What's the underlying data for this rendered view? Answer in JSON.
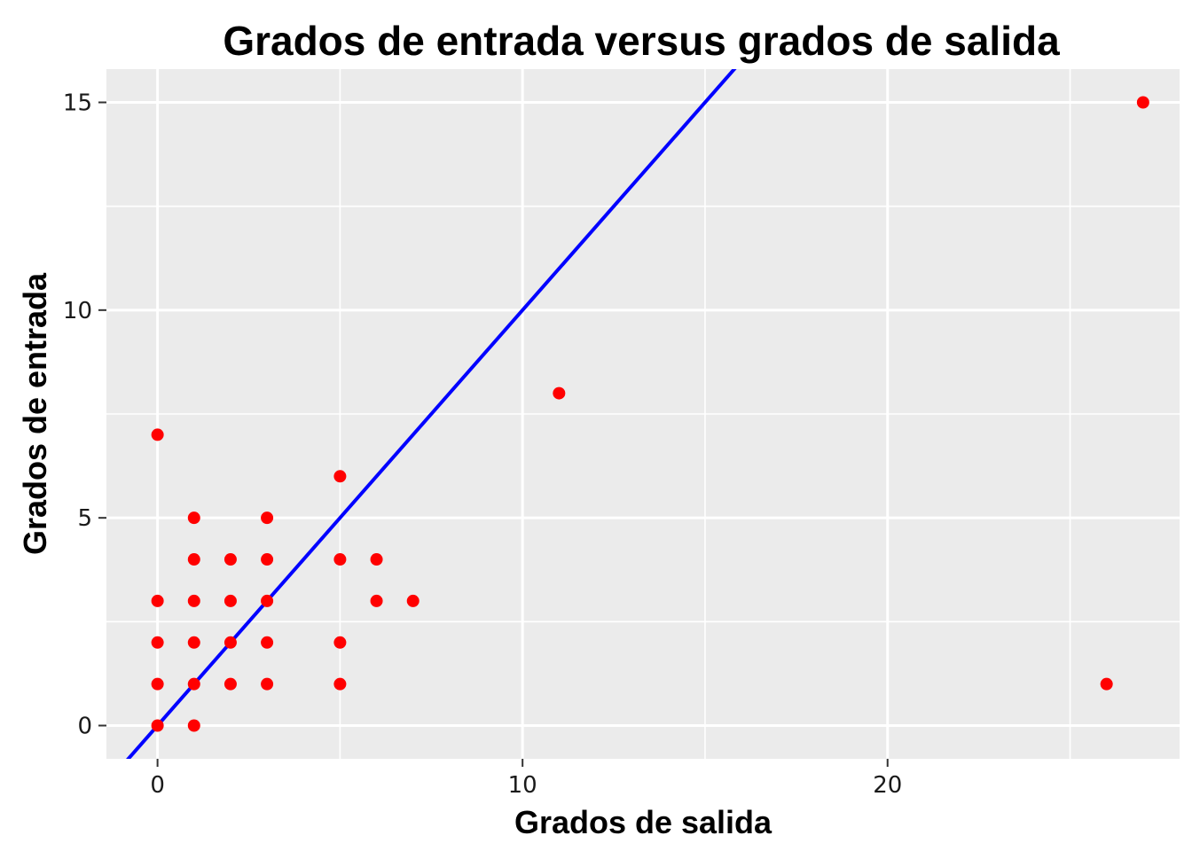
{
  "chart_data": {
    "type": "scatter",
    "title": "Grados de entrada versus grados de salida",
    "xlabel": "Grados de salida",
    "ylabel": "Grados de entrada",
    "xlim": [
      -1.4,
      28.0
    ],
    "ylim": [
      -0.8,
      15.8
    ],
    "x_ticks": [
      0,
      10,
      20
    ],
    "x_tick_labels": [
      "0",
      "10",
      "20"
    ],
    "x_minor_ticks": [
      5,
      15,
      25
    ],
    "y_ticks": [
      0,
      5,
      10,
      15
    ],
    "y_tick_labels": [
      "0",
      "5",
      "10",
      "15"
    ],
    "y_minor_ticks": [
      2.5,
      7.5,
      12.5
    ],
    "grid": true,
    "legend": "none",
    "colors": {
      "panel_background": "#ebebeb",
      "grid": "#ffffff",
      "points": "#ff0000",
      "reference_line": "#0000ff"
    },
    "reference_line": {
      "slope": 1,
      "intercept": 0
    },
    "points": [
      {
        "x": 0,
        "y": 0
      },
      {
        "x": 0,
        "y": 1
      },
      {
        "x": 0,
        "y": 2
      },
      {
        "x": 0,
        "y": 3
      },
      {
        "x": 0,
        "y": 7
      },
      {
        "x": 1,
        "y": 0
      },
      {
        "x": 1,
        "y": 1
      },
      {
        "x": 1,
        "y": 2
      },
      {
        "x": 1,
        "y": 3
      },
      {
        "x": 1,
        "y": 4
      },
      {
        "x": 1,
        "y": 5
      },
      {
        "x": 2,
        "y": 1
      },
      {
        "x": 2,
        "y": 2
      },
      {
        "x": 2,
        "y": 3
      },
      {
        "x": 2,
        "y": 4
      },
      {
        "x": 3,
        "y": 1
      },
      {
        "x": 3,
        "y": 2
      },
      {
        "x": 3,
        "y": 3
      },
      {
        "x": 3,
        "y": 4
      },
      {
        "x": 3,
        "y": 5
      },
      {
        "x": 5,
        "y": 1
      },
      {
        "x": 5,
        "y": 2
      },
      {
        "x": 5,
        "y": 4
      },
      {
        "x": 5,
        "y": 6
      },
      {
        "x": 6,
        "y": 3
      },
      {
        "x": 6,
        "y": 4
      },
      {
        "x": 7,
        "y": 3
      },
      {
        "x": 11,
        "y": 8
      },
      {
        "x": 26,
        "y": 1
      },
      {
        "x": 27,
        "y": 15
      }
    ]
  }
}
